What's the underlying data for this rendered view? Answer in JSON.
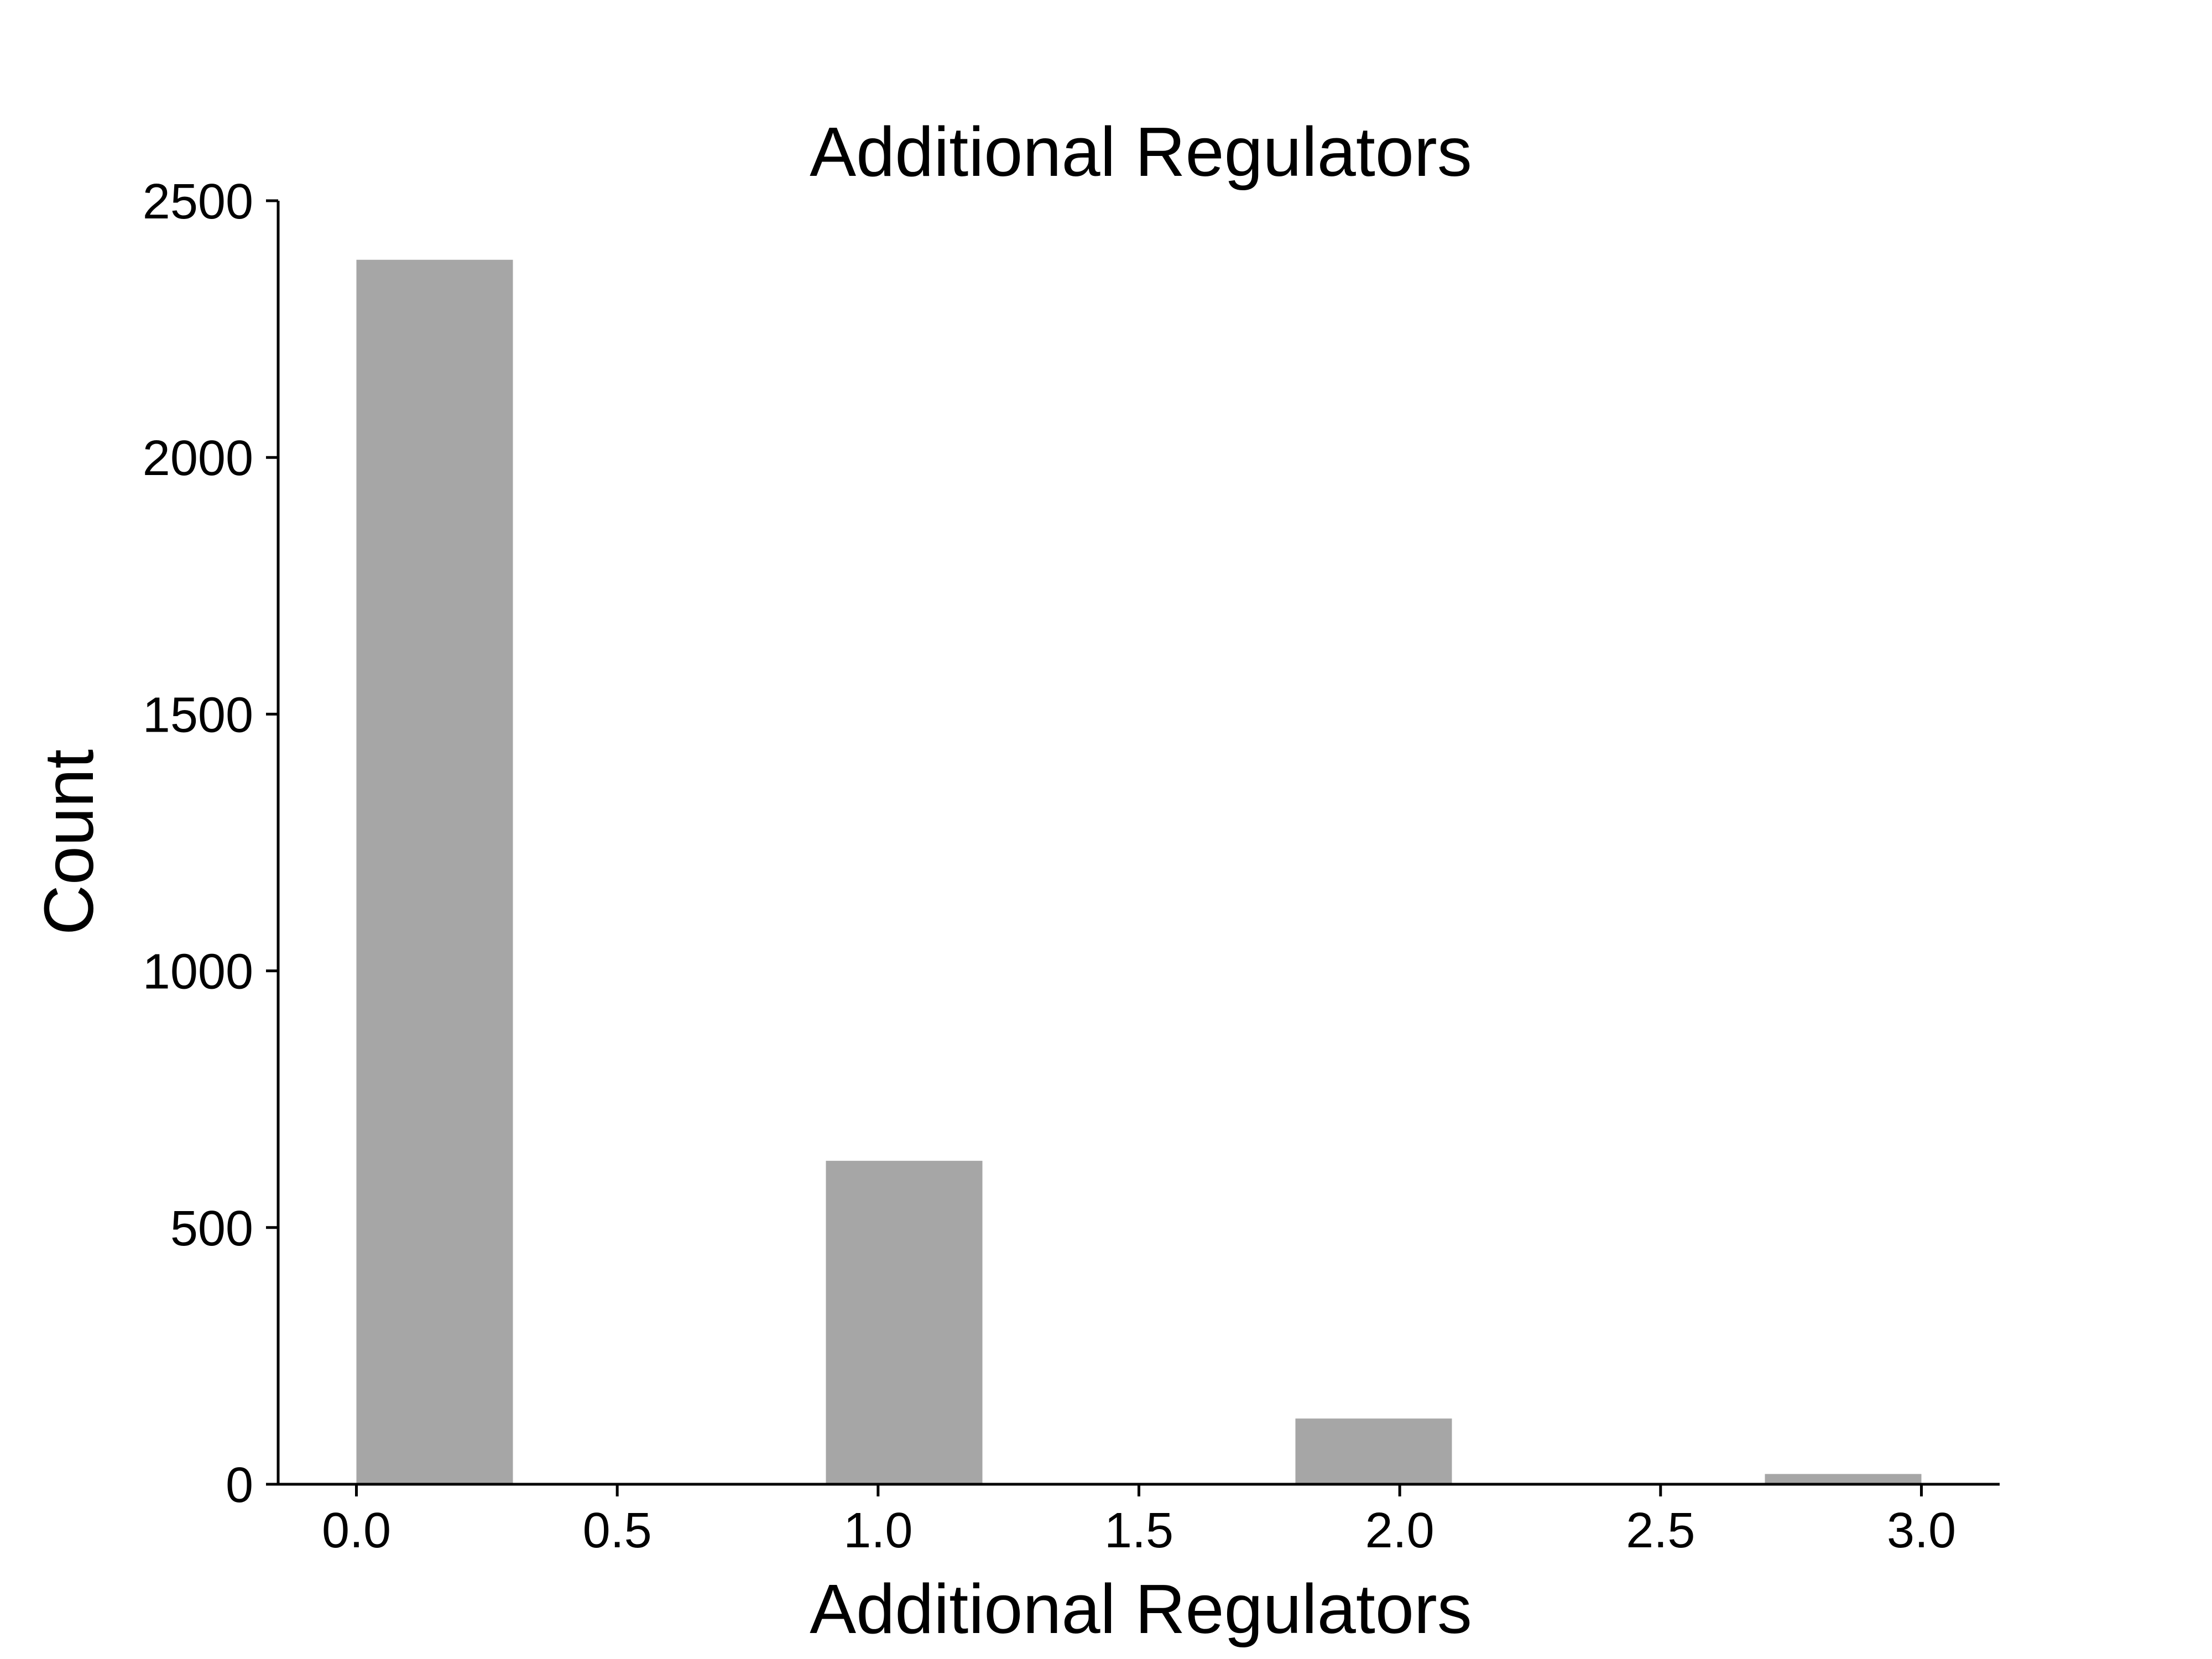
{
  "chart_data": {
    "type": "bar",
    "title": "Additional Regulators",
    "xlabel": "Additional Regulators",
    "ylabel": "Count",
    "x": [
      0.15,
      1.05,
      1.95,
      2.85
    ],
    "bin_width": 0.3,
    "values": [
      2385,
      630,
      128,
      20
    ],
    "xlim": [
      -0.15,
      3.15
    ],
    "ylim": [
      0,
      2500
    ],
    "xticks": [
      0.0,
      0.5,
      1.0,
      1.5,
      2.0,
      2.5,
      3.0
    ],
    "xtick_labels": [
      "0.0",
      "0.5",
      "1.0",
      "1.5",
      "2.0",
      "2.5",
      "3.0"
    ],
    "yticks": [
      0,
      500,
      1000,
      1500,
      2000,
      2500
    ],
    "ytick_labels": [
      "0",
      "500",
      "1000",
      "1500",
      "2000",
      "2500"
    ],
    "bar_color": "#a6a6a6",
    "grid": false,
    "legend": "none"
  }
}
